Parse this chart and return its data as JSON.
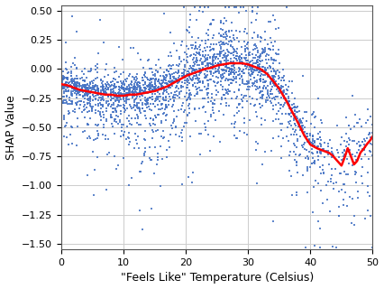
{
  "title": "",
  "xlabel": "\"Feels Like\" Temperature (Celsius)",
  "ylabel": "SHAP Value",
  "xlim": [
    0,
    50
  ],
  "ylim": [
    -1.55,
    0.55
  ],
  "yticks": [
    0.5,
    0.25,
    0.0,
    -0.25,
    -0.5,
    -0.75,
    -1.0,
    -1.25,
    -1.5
  ],
  "xticks": [
    0,
    10,
    20,
    30,
    40,
    50
  ],
  "scatter_color": "#4472C4",
  "line_color": "#FF0000",
  "background_color": "#ffffff",
  "grid_color": "#cccccc",
  "seed": 42,
  "red_line_x": [
    0,
    1,
    2,
    3,
    4,
    5,
    6,
    7,
    8,
    9,
    10,
    11,
    12,
    13,
    14,
    15,
    16,
    17,
    18,
    19,
    20,
    21,
    22,
    23,
    24,
    25,
    26,
    27,
    28,
    29,
    30,
    31,
    32,
    33,
    34,
    35,
    36,
    37,
    38,
    39,
    40,
    41,
    42,
    43,
    43.5,
    44,
    44.5,
    45,
    45.5,
    46,
    46.5,
    47,
    47.5,
    48,
    48.5,
    49,
    49.5,
    50
  ],
  "red_line_y": [
    -0.13,
    -0.14,
    -0.16,
    -0.18,
    -0.19,
    -0.2,
    -0.21,
    -0.22,
    -0.22,
    -0.23,
    -0.23,
    -0.22,
    -0.22,
    -0.21,
    -0.2,
    -0.19,
    -0.17,
    -0.15,
    -0.12,
    -0.09,
    -0.06,
    -0.04,
    -0.02,
    0.0,
    0.01,
    0.03,
    0.04,
    0.05,
    0.05,
    0.05,
    0.04,
    0.02,
    0.0,
    -0.04,
    -0.1,
    -0.17,
    -0.26,
    -0.36,
    -0.46,
    -0.57,
    -0.65,
    -0.68,
    -0.7,
    -0.72,
    -0.74,
    -0.77,
    -0.8,
    -0.83,
    -0.76,
    -0.68,
    -0.75,
    -0.82,
    -0.79,
    -0.72,
    -0.69,
    -0.65,
    -0.62,
    -0.58
  ]
}
